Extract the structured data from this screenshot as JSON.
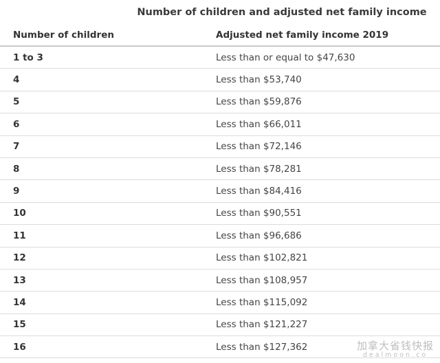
{
  "caption": "Number of children and adjusted net family income",
  "table": {
    "headers": {
      "children": "Number of children",
      "income": "Adjusted net family income 2019"
    },
    "rows": [
      {
        "children": "1 to 3",
        "income": "Less than or equal to $47,630"
      },
      {
        "children": "4",
        "income": "Less than $53,740"
      },
      {
        "children": "5",
        "income": "Less than $59,876"
      },
      {
        "children": "6",
        "income": "Less than $66,011"
      },
      {
        "children": "7",
        "income": "Less than $72,146"
      },
      {
        "children": "8",
        "income": "Less than $78,281"
      },
      {
        "children": "9",
        "income": "Less than $84,416"
      },
      {
        "children": "10",
        "income": "Less than $90,551"
      },
      {
        "children": "11",
        "income": "Less than $96,686"
      },
      {
        "children": "12",
        "income": "Less than $102,821"
      },
      {
        "children": "13",
        "income": "Less than $108,957"
      },
      {
        "children": "14",
        "income": "Less than $115,092"
      },
      {
        "children": "15",
        "income": "Less than $121,227"
      },
      {
        "children": "16",
        "income": "Less than $127,362"
      }
    ]
  },
  "watermark": {
    "cn": "加拿大省钱快报",
    "en": "dealmoon.co"
  }
}
